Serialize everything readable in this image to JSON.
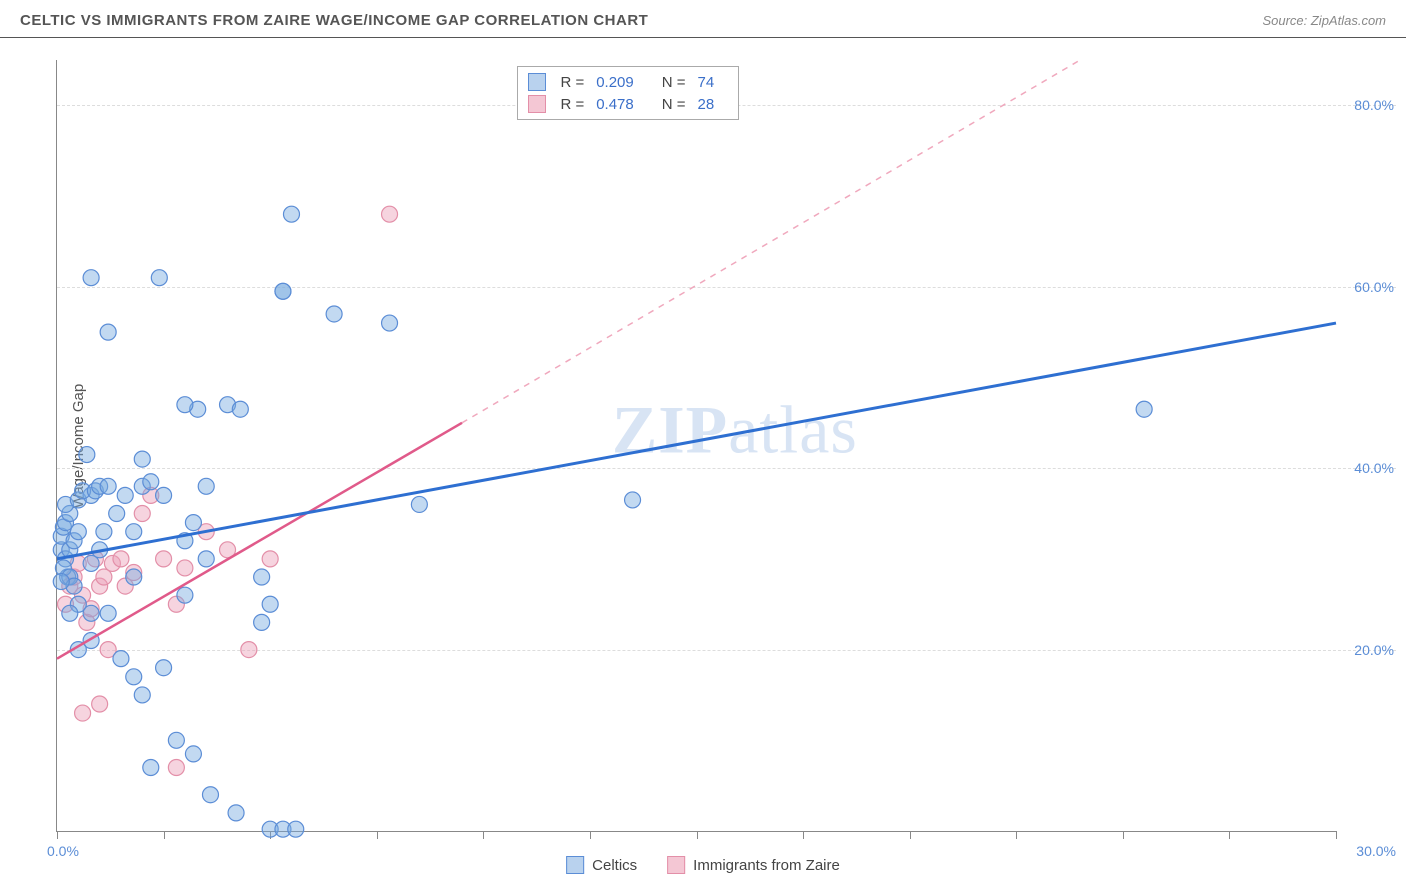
{
  "header": {
    "title": "CELTIC VS IMMIGRANTS FROM ZAIRE WAGE/INCOME GAP CORRELATION CHART",
    "source": "Source: ZipAtlas.com"
  },
  "axes": {
    "ylabel": "Wage/Income Gap",
    "xlim": [
      0,
      30
    ],
    "ylim": [
      0,
      85
    ],
    "y_ticks": [
      20,
      40,
      60,
      80
    ],
    "y_tick_labels": [
      "20.0%",
      "40.0%",
      "60.0%",
      "80.0%"
    ],
    "x_ticks": [
      0,
      2.5,
      5,
      7.5,
      10,
      12.5,
      15,
      17.5,
      20,
      22.5,
      25,
      27.5,
      30
    ],
    "x_origin_label": "0.0%",
    "x_max_label": "30.0%",
    "grid_color": "#dddddd",
    "axis_color": "#888888"
  },
  "watermark": {
    "part1": "ZIP",
    "part2": "atlas"
  },
  "legend_top": [
    {
      "swatch_fill": "#b9d2ee",
      "swatch_border": "#5b8dd6",
      "r_label": "R =",
      "r_val": "0.209",
      "n_label": "N =",
      "n_val": "74"
    },
    {
      "swatch_fill": "#f4c7d4",
      "swatch_border": "#e38fa8",
      "r_label": "R =",
      "r_val": "0.478",
      "n_label": "N =",
      "n_val": "28"
    }
  ],
  "legend_bottom": [
    {
      "swatch_fill": "#b9d2ee",
      "swatch_border": "#5b8dd6",
      "label": "Celtics"
    },
    {
      "swatch_fill": "#f4c7d4",
      "swatch_border": "#e38fa8",
      "label": "Immigrants from Zaire"
    }
  ],
  "series": {
    "celtics": {
      "color_fill": "rgba(120,170,225,0.45)",
      "color_stroke": "#5b8dd6",
      "marker_r": 8,
      "trend": {
        "x1": 0,
        "y1": 30,
        "x2": 30,
        "y2": 56,
        "color": "#2e6fd1",
        "width": 3,
        "dash": "none"
      },
      "points": [
        [
          0.1,
          31
        ],
        [
          0.1,
          32.5
        ],
        [
          0.2,
          30
        ],
        [
          0.15,
          33.5
        ],
        [
          0.2,
          34
        ],
        [
          0.3,
          31
        ],
        [
          0.25,
          28
        ],
        [
          0.15,
          29
        ],
        [
          0.4,
          32
        ],
        [
          0.5,
          33
        ],
        [
          0.3,
          35
        ],
        [
          0.2,
          36
        ],
        [
          0.5,
          36.5
        ],
        [
          0.8,
          37
        ],
        [
          0.6,
          37.5
        ],
        [
          0.9,
          37.5
        ],
        [
          1.0,
          38
        ],
        [
          1.2,
          38
        ],
        [
          0.7,
          41.5
        ],
        [
          0.3,
          28
        ],
        [
          0.4,
          27
        ],
        [
          0.5,
          25
        ],
        [
          0.8,
          29.5
        ],
        [
          1.0,
          31
        ],
        [
          1.1,
          33
        ],
        [
          1.4,
          35
        ],
        [
          1.6,
          37
        ],
        [
          1.8,
          33
        ],
        [
          2.0,
          38
        ],
        [
          2.2,
          38.5
        ],
        [
          2.0,
          41
        ],
        [
          2.5,
          37
        ],
        [
          3.0,
          32
        ],
        [
          3.2,
          34
        ],
        [
          3.5,
          38
        ],
        [
          4.0,
          47
        ],
        [
          4.3,
          46.5
        ],
        [
          5.3,
          59.5
        ],
        [
          5.5,
          68
        ],
        [
          6.5,
          57
        ],
        [
          7.8,
          56
        ],
        [
          8.5,
          36
        ],
        [
          5.0,
          25
        ],
        [
          4.8,
          28
        ],
        [
          4.8,
          23
        ],
        [
          3.3,
          46.5
        ],
        [
          1.2,
          55
        ],
        [
          3.0,
          47
        ],
        [
          0.8,
          61
        ],
        [
          2.4,
          61
        ],
        [
          5.3,
          59.5
        ],
        [
          0.8,
          21
        ],
        [
          1.5,
          19
        ],
        [
          1.8,
          17
        ],
        [
          2.0,
          15
        ],
        [
          2.5,
          18
        ],
        [
          2.8,
          10
        ],
        [
          2.2,
          7
        ],
        [
          3.2,
          8.5
        ],
        [
          3.6,
          4
        ],
        [
          4.2,
          2
        ],
        [
          5.0,
          0.2
        ],
        [
          5.3,
          0.2
        ],
        [
          5.6,
          0.2
        ],
        [
          0.8,
          24
        ],
        [
          1.2,
          24
        ],
        [
          1.8,
          28
        ],
        [
          0.5,
          20
        ],
        [
          13.5,
          36.5
        ],
        [
          25.5,
          46.5
        ],
        [
          3.0,
          26
        ],
        [
          3.5,
          30
        ],
        [
          0.1,
          27.5
        ],
        [
          0.3,
          24
        ]
      ]
    },
    "zaire": {
      "color_fill": "rgba(235,160,185,0.45)",
      "color_stroke": "#e38fa8",
      "marker_r": 8,
      "trend_solid": {
        "x1": 0,
        "y1": 19,
        "x2": 9.5,
        "y2": 45,
        "color": "#e05a8a",
        "width": 2.5
      },
      "trend_dash": {
        "x1": 9.5,
        "y1": 45,
        "x2": 24,
        "y2": 85,
        "color": "#f0a8bd",
        "width": 1.5,
        "dash": "6,6"
      },
      "points": [
        [
          0.2,
          25
        ],
        [
          0.3,
          27
        ],
        [
          0.4,
          28
        ],
        [
          0.5,
          29.5
        ],
        [
          0.6,
          26
        ],
        [
          0.7,
          23
        ],
        [
          0.8,
          24.5
        ],
        [
          0.9,
          30
        ],
        [
          1.0,
          27
        ],
        [
          1.1,
          28
        ],
        [
          1.3,
          29.5
        ],
        [
          1.5,
          30
        ],
        [
          1.6,
          27
        ],
        [
          1.8,
          28.5
        ],
        [
          2.0,
          35
        ],
        [
          2.2,
          37
        ],
        [
          2.5,
          30
        ],
        [
          2.8,
          25
        ],
        [
          3.0,
          29
        ],
        [
          3.5,
          33
        ],
        [
          4.0,
          31
        ],
        [
          4.5,
          20
        ],
        [
          5.0,
          30
        ],
        [
          1.2,
          20
        ],
        [
          1.0,
          14
        ],
        [
          0.6,
          13
        ],
        [
          2.8,
          7
        ],
        [
          7.8,
          68
        ]
      ]
    }
  }
}
